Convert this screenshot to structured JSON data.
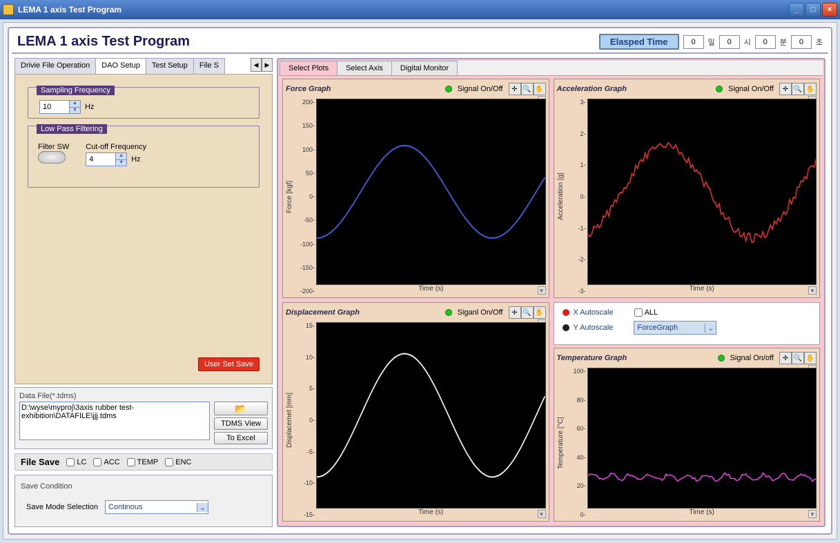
{
  "window": {
    "title": "LEMA 1 axis Test Program"
  },
  "header": {
    "title": "LEMA 1 axis  Test Program",
    "elapsed_label": "Elasped Time",
    "elapsed": {
      "day": "0",
      "day_u": "일",
      "hour": "0",
      "hour_u": "시",
      "min": "0",
      "min_u": "분",
      "sec": "0",
      "sec_u": "초"
    }
  },
  "left_tabs": [
    "Drivie File Operation",
    "DAO Setup",
    "Test Setup",
    "File S"
  ],
  "left_tabs_active": 1,
  "daq": {
    "sampling_label": "Sampling Frequency",
    "sampling_value": "10",
    "sampling_unit": "Hz",
    "lpf_label": "Low Pass Filtering",
    "filter_sw_label": "Filter SW",
    "cutoff_label": "Cut-off Frequency",
    "cutoff_value": "4",
    "cutoff_unit": "Hz",
    "user_save": "User Set Save"
  },
  "datafile": {
    "label": "Data File(*.tdms)",
    "path": "D:\\wyse\\myproj\\3axis rubber test-exhibition\\DATAFILE\\jjj.tdms",
    "tdms_btn": "TDMS View",
    "excel_btn": "To Excel"
  },
  "filesave": {
    "label": "File Save",
    "opts": [
      "LC",
      "ACC",
      "TEMP",
      "ENC"
    ]
  },
  "savecond": {
    "title": "Save Condition",
    "mode_label": "Save Mode  Selection",
    "mode_value": "Continous"
  },
  "right_tabs": [
    "Select Plots",
    "Select Axis",
    "Digital Monitor"
  ],
  "right_tabs_active": 0,
  "autoscale": {
    "x_label": "X Autoscale",
    "y_label": "Y Autoscale",
    "all_label": "ALL",
    "combo_value": "ForceGraph",
    "x_color": "#e02020",
    "y_color": "#202020"
  },
  "charts": {
    "force": {
      "title": "Force Graph",
      "signal_label": "Signal On/Off",
      "ylabel": "Force [kgf]",
      "xlabel": "Time (s)",
      "yticks": [
        "200",
        "150",
        "100",
        "50",
        "0",
        "-50",
        "-100",
        "-150",
        "-200"
      ],
      "ylim": [
        -200,
        200
      ],
      "line_color": "#4060e0",
      "bg": "#000000",
      "curve": {
        "amp": 100,
        "phase": -1.57,
        "cycles": 1.3,
        "offset": 0
      }
    },
    "accel": {
      "title": "Acceleration Graph",
      "signal_label": "Signal On/Off",
      "ylabel": "Acceleration [g]",
      "xlabel": "Time (s)",
      "yticks": [
        "3",
        "2",
        "1",
        "0",
        "-1",
        "-2",
        "-3"
      ],
      "ylim": [
        -3,
        3
      ],
      "line_color": "#d03030",
      "bg": "#000000",
      "curve": {
        "amp": 1.5,
        "phase": -1.2,
        "cycles": 1.3,
        "offset": 0,
        "noise": 0.15
      }
    },
    "disp": {
      "title": "Displacement Graph",
      "signal_label": "Siganl On/Off",
      "ylabel": "Displacemet [mm]",
      "xlabel": "Time (s)",
      "yticks": [
        "15",
        "10",
        "5",
        "0",
        "-5",
        "-10",
        "-15"
      ],
      "ylim": [
        -15,
        15
      ],
      "line_color": "#f0f0f0",
      "bg": "#000000",
      "curve": {
        "amp": 10,
        "phase": -1.57,
        "cycles": 1.3,
        "offset": 0
      }
    },
    "temp": {
      "title": "Temperature Graph",
      "signal_label": "Signal On/off",
      "ylabel": "Temperature [°C]",
      "xlabel": "Time (s)",
      "yticks": [
        "100",
        "80",
        "60",
        "40",
        "20",
        "0"
      ],
      "ylim": [
        0,
        100
      ],
      "line_color": "#e040e0",
      "bg": "#000000",
      "curve": {
        "amp": 2,
        "phase": 0,
        "cycles": 12,
        "offset": 22,
        "noise": 1.2
      }
    }
  }
}
